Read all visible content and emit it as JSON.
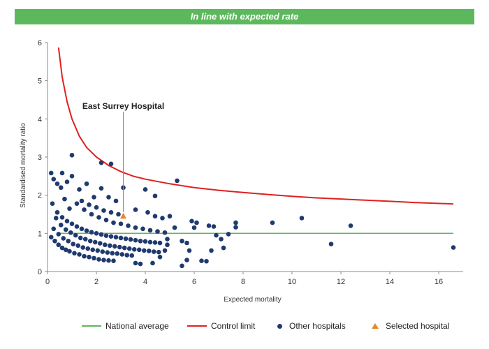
{
  "header": {
    "title": "In line with expected rate"
  },
  "colors": {
    "banner": "#5cb85c",
    "average": "#5cb85c",
    "control": "#e02020",
    "others": "#1f3a6e",
    "selected": "#e8862a"
  },
  "chart_data": {
    "type": "scatter",
    "xlabel": "Expected mortality",
    "ylabel": "Standardised mortality ratio",
    "xlim": [
      0,
      17
    ],
    "ylim": [
      0,
      6
    ],
    "x_ticks": [
      0,
      2,
      4,
      6,
      8,
      10,
      12,
      14,
      16
    ],
    "y_ticks": [
      0,
      1,
      2,
      3,
      4,
      5,
      6
    ],
    "grid": false,
    "legend_position": "bottom",
    "annotation": {
      "text": "East Surrey Hospital",
      "x": 3.1,
      "y": 1.45
    },
    "series": [
      {
        "name": "National average",
        "kind": "line",
        "points": [
          [
            0.4,
            1
          ],
          [
            16.6,
            1
          ]
        ]
      },
      {
        "name": "Control limit",
        "kind": "line",
        "points": [
          [
            0.45,
            5.87
          ],
          [
            0.6,
            5.1
          ],
          [
            0.8,
            4.45
          ],
          [
            1.0,
            4.0
          ],
          [
            1.3,
            3.55
          ],
          [
            1.6,
            3.25
          ],
          [
            2.0,
            3.0
          ],
          [
            2.5,
            2.78
          ],
          [
            3.0,
            2.62
          ],
          [
            3.5,
            2.5
          ],
          [
            4.0,
            2.42
          ],
          [
            5.0,
            2.3
          ],
          [
            6.0,
            2.2
          ],
          [
            7.0,
            2.13
          ],
          [
            8.0,
            2.07
          ],
          [
            9.0,
            2.02
          ],
          [
            10.0,
            1.97
          ],
          [
            11.0,
            1.93
          ],
          [
            12.0,
            1.9
          ],
          [
            13.0,
            1.87
          ],
          [
            14.0,
            1.84
          ],
          [
            15.0,
            1.81
          ],
          [
            16.6,
            1.77
          ]
        ]
      },
      {
        "name": "Other hospitals",
        "kind": "scatter",
        "points": [
          [
            0.15,
            0.9
          ],
          [
            0.3,
            0.8
          ],
          [
            0.45,
            0.7
          ],
          [
            0.6,
            0.62
          ],
          [
            0.75,
            0.57
          ],
          [
            0.9,
            0.53
          ],
          [
            1.1,
            0.48
          ],
          [
            1.3,
            0.45
          ],
          [
            1.5,
            0.4
          ],
          [
            1.7,
            0.38
          ],
          [
            1.9,
            0.35
          ],
          [
            2.1,
            0.32
          ],
          [
            2.3,
            0.3
          ],
          [
            2.5,
            0.29
          ],
          [
            2.7,
            0.28
          ],
          [
            0.25,
            1.12
          ],
          [
            0.45,
            0.98
          ],
          [
            0.65,
            0.87
          ],
          [
            0.85,
            0.8
          ],
          [
            1.05,
            0.72
          ],
          [
            1.25,
            0.68
          ],
          [
            1.45,
            0.63
          ],
          [
            1.65,
            0.6
          ],
          [
            1.85,
            0.57
          ],
          [
            2.05,
            0.55
          ],
          [
            2.25,
            0.52
          ],
          [
            2.45,
            0.5
          ],
          [
            2.65,
            0.48
          ],
          [
            2.85,
            0.47
          ],
          [
            3.05,
            0.45
          ],
          [
            3.25,
            0.43
          ],
          [
            3.45,
            0.42
          ],
          [
            0.35,
            1.4
          ],
          [
            0.55,
            1.22
          ],
          [
            0.75,
            1.1
          ],
          [
            0.95,
            1.02
          ],
          [
            1.15,
            0.95
          ],
          [
            1.35,
            0.88
          ],
          [
            1.55,
            0.85
          ],
          [
            1.75,
            0.8
          ],
          [
            1.95,
            0.77
          ],
          [
            2.15,
            0.74
          ],
          [
            2.35,
            0.7
          ],
          [
            2.55,
            0.68
          ],
          [
            2.75,
            0.66
          ],
          [
            2.95,
            0.64
          ],
          [
            3.15,
            0.62
          ],
          [
            3.35,
            0.6
          ],
          [
            3.55,
            0.58
          ],
          [
            3.75,
            0.57
          ],
          [
            3.95,
            0.55
          ],
          [
            4.15,
            0.54
          ],
          [
            4.35,
            0.52
          ],
          [
            4.55,
            0.51
          ],
          [
            0.2,
            1.78
          ],
          [
            0.4,
            1.55
          ],
          [
            0.6,
            1.42
          ],
          [
            0.8,
            1.32
          ],
          [
            1.0,
            1.25
          ],
          [
            1.2,
            1.18
          ],
          [
            1.4,
            1.12
          ],
          [
            1.6,
            1.07
          ],
          [
            1.8,
            1.03
          ],
          [
            2.0,
            1.0
          ],
          [
            2.2,
            0.97
          ],
          [
            2.4,
            0.94
          ],
          [
            2.6,
            0.92
          ],
          [
            2.8,
            0.9
          ],
          [
            3.0,
            0.88
          ],
          [
            3.2,
            0.86
          ],
          [
            3.4,
            0.84
          ],
          [
            3.6,
            0.82
          ],
          [
            3.8,
            0.8
          ],
          [
            4.0,
            0.79
          ],
          [
            4.2,
            0.77
          ],
          [
            4.4,
            0.76
          ],
          [
            4.6,
            0.75
          ],
          [
            1.2,
            1.78
          ],
          [
            1.5,
            1.62
          ],
          [
            1.8,
            1.5
          ],
          [
            2.1,
            1.42
          ],
          [
            2.4,
            1.35
          ],
          [
            2.7,
            1.28
          ],
          [
            3.0,
            1.25
          ],
          [
            3.3,
            1.2
          ],
          [
            3.6,
            1.15
          ],
          [
            3.9,
            1.12
          ],
          [
            4.2,
            1.08
          ],
          [
            4.5,
            1.05
          ],
          [
            4.8,
            1.02
          ],
          [
            1.4,
            1.85
          ],
          [
            1.7,
            1.75
          ],
          [
            2.0,
            1.68
          ],
          [
            2.3,
            1.6
          ],
          [
            2.6,
            1.55
          ],
          [
            2.9,
            1.5
          ],
          [
            3.6,
            1.62
          ],
          [
            4.1,
            1.55
          ],
          [
            4.4,
            1.45
          ],
          [
            4.7,
            1.4
          ],
          [
            5.0,
            1.45
          ],
          [
            5.2,
            1.15
          ],
          [
            4.9,
            0.85
          ],
          [
            2.2,
            2.18
          ],
          [
            2.5,
            1.95
          ],
          [
            2.8,
            1.85
          ],
          [
            3.1,
            2.2
          ],
          [
            4.0,
            2.15
          ],
          [
            4.4,
            1.98
          ],
          [
            2.2,
            2.85
          ],
          [
            2.6,
            2.82
          ],
          [
            5.3,
            2.38
          ],
          [
            1.0,
            3.05
          ],
          [
            0.15,
            2.58
          ],
          [
            0.25,
            2.42
          ],
          [
            0.4,
            2.3
          ],
          [
            0.55,
            2.2
          ],
          [
            0.6,
            2.58
          ],
          [
            0.8,
            2.35
          ],
          [
            1.0,
            2.5
          ],
          [
            1.3,
            2.15
          ],
          [
            0.9,
            1.65
          ],
          [
            1.6,
            2.3
          ],
          [
            1.9,
            1.95
          ],
          [
            0.7,
            1.9
          ],
          [
            3.6,
            0.22
          ],
          [
            3.8,
            0.2
          ],
          [
            4.3,
            0.22
          ],
          [
            4.6,
            0.38
          ],
          [
            4.8,
            0.55
          ],
          [
            4.9,
            0.7
          ],
          [
            5.5,
            0.15
          ],
          [
            5.7,
            0.3
          ],
          [
            5.5,
            0.8
          ],
          [
            5.7,
            0.75
          ],
          [
            5.8,
            0.55
          ],
          [
            5.9,
            1.32
          ],
          [
            6.1,
            1.28
          ],
          [
            6.0,
            1.15
          ],
          [
            6.3,
            0.28
          ],
          [
            6.5,
            0.27
          ],
          [
            6.6,
            1.2
          ],
          [
            6.7,
            0.55
          ],
          [
            6.8,
            1.18
          ],
          [
            6.9,
            0.95
          ],
          [
            7.1,
            0.85
          ],
          [
            7.2,
            0.62
          ],
          [
            7.4,
            0.98
          ],
          [
            7.7,
            1.28
          ],
          [
            7.7,
            1.16
          ],
          [
            9.2,
            1.28
          ],
          [
            10.4,
            1.4
          ],
          [
            11.6,
            0.72
          ],
          [
            12.4,
            1.2
          ],
          [
            16.6,
            0.63
          ]
        ]
      },
      {
        "name": "Selected hospital",
        "kind": "marker",
        "points": [
          [
            3.1,
            1.45
          ]
        ]
      }
    ]
  }
}
